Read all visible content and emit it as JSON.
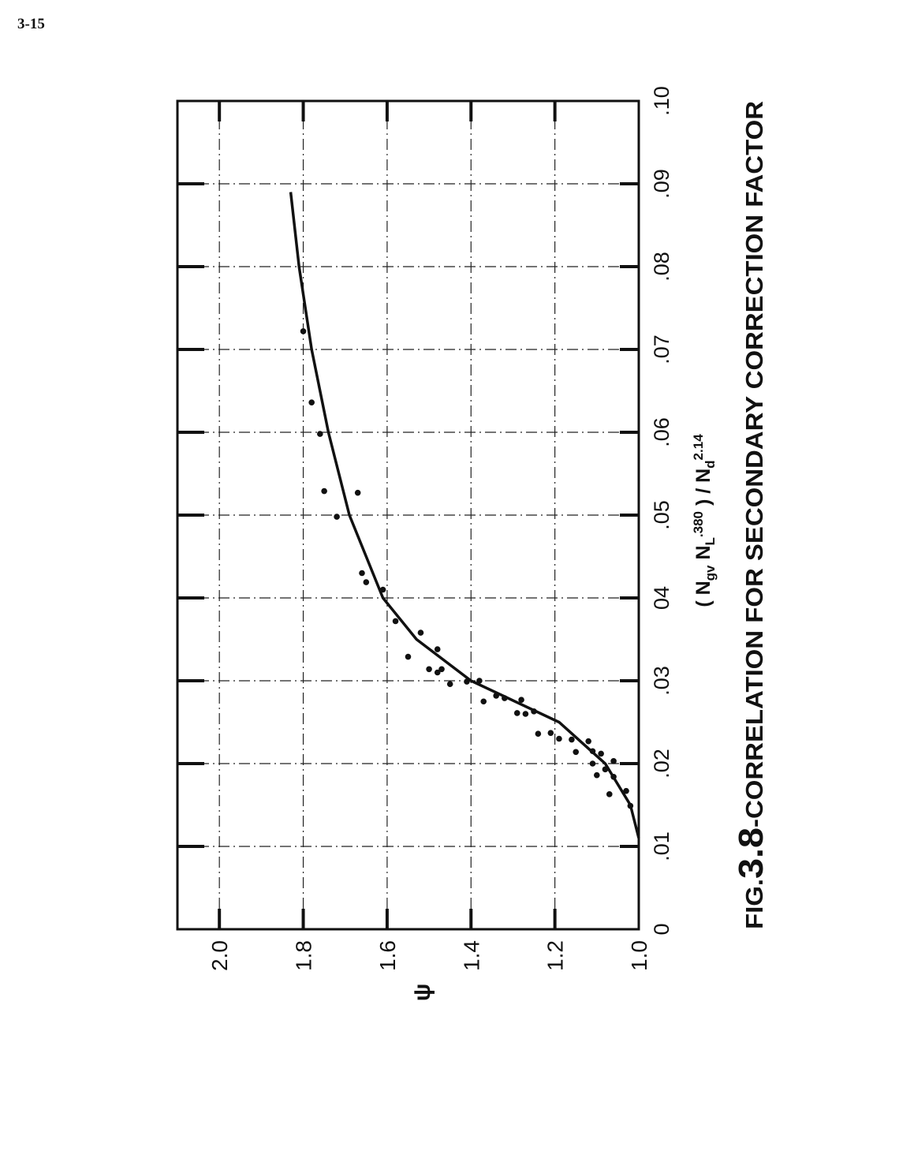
{
  "page_label": "3-15",
  "chart_data": {
    "type": "scatter",
    "title": [
      "FIG.",
      "3.8",
      "-CORRELATION FOR SECONDARY CORRECTION FACTOR"
    ],
    "xlabel": [
      {
        "text": "( N"
      },
      {
        "text": "gv",
        "shift": "sub"
      },
      {
        "text": " N"
      },
      {
        "text": "L",
        "shift": "sub"
      },
      {
        "text": ".380",
        "shift": "super"
      },
      {
        "text": " ) / N"
      },
      {
        "text": "d",
        "shift": "sub"
      },
      {
        "text": "2.14",
        "shift": "super"
      }
    ],
    "ylabel": "ψ",
    "xlim": [
      0,
      0.1
    ],
    "ylim": [
      1.0,
      2.1
    ],
    "xticks": [
      0,
      {
        "value": 0.01,
        "label": ".01"
      },
      {
        "value": 0.02,
        "label": ".02"
      },
      {
        "value": 0.03,
        "label": ".03"
      },
      {
        "value": 0.04,
        "label": "04"
      },
      {
        "value": 0.05,
        "label": ".05"
      },
      {
        "value": 0.06,
        "label": ".06"
      },
      {
        "value": 0.07,
        "label": ".07"
      },
      {
        "value": 0.08,
        "label": ".08"
      },
      {
        "value": 0.09,
        "label": ".09"
      },
      {
        "value": 0.1,
        "label": ".10"
      }
    ],
    "yticks": [
      {
        "value": 1.0,
        "label": "1.0"
      },
      1.2,
      1.4,
      1.6,
      1.8,
      {
        "value": 2.0,
        "label": "2.0"
      }
    ],
    "grid": true,
    "color": "#111111",
    "x": [
      0.0722,
      0.0636,
      0.0598,
      0.0529,
      0.0498,
      0.0527,
      0.043,
      0.0419,
      0.041,
      0.0372,
      0.0358,
      0.0329,
      0.0314,
      0.0338,
      0.031,
      0.0314,
      0.0296,
      0.0299,
      0.03,
      0.0275,
      0.0282,
      0.0279,
      0.0277,
      0.0261,
      0.026,
      0.0263,
      0.0236,
      0.0237,
      0.023,
      0.0229,
      0.0214,
      0.0227,
      0.0215,
      0.02,
      0.0212,
      0.0186,
      0.0193,
      0.0203,
      0.0163,
      0.0184,
      0.0167,
      0.0149
    ],
    "values": [
      1.8,
      1.78,
      1.76,
      1.75,
      1.72,
      1.67,
      1.66,
      1.65,
      1.61,
      1.58,
      1.52,
      1.55,
      1.5,
      1.48,
      1.48,
      1.47,
      1.45,
      1.41,
      1.38,
      1.37,
      1.34,
      1.32,
      1.28,
      1.29,
      1.27,
      1.25,
      1.24,
      1.21,
      1.19,
      1.16,
      1.15,
      1.12,
      1.11,
      1.11,
      1.09,
      1.1,
      1.08,
      1.06,
      1.07,
      1.06,
      1.03,
      1.02
    ],
    "curve_x": [
      0.011,
      0.015,
      0.02,
      0.025,
      0.03,
      0.035,
      0.04,
      0.05,
      0.06,
      0.07,
      0.08,
      0.089
    ],
    "curve_values": [
      1.0,
      1.02,
      1.08,
      1.19,
      1.4,
      1.53,
      1.61,
      1.69,
      1.74,
      1.78,
      1.81,
      1.83
    ]
  }
}
